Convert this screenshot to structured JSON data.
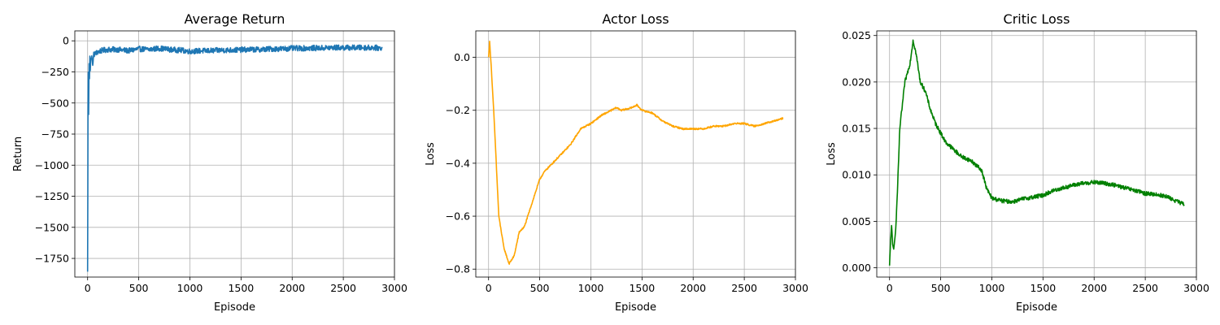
{
  "colors": {
    "return": "#1f77b4",
    "actor": "#ffa500",
    "critic": "#008000",
    "grid": "#b0b0b0",
    "spine": "#000000"
  },
  "chart_data": [
    {
      "type": "line",
      "title": "Average Return",
      "xlabel": "Episode",
      "ylabel": "Return",
      "xlim": [
        -125,
        3000
      ],
      "ylim": [
        -1900,
        80
      ],
      "x_ticks": [
        0,
        500,
        1000,
        1500,
        2000,
        2500,
        3000
      ],
      "y_ticks": [
        -1750,
        -1500,
        -1250,
        -1000,
        -750,
        -500,
        -250,
        0
      ],
      "x_tick_labels": [
        "0",
        "500",
        "1000",
        "1500",
        "2000",
        "2500",
        "3000"
      ],
      "y_tick_labels": [
        "−1750",
        "−1500",
        "−1250",
        "−1000",
        "−750",
        "−500",
        "−250",
        "0"
      ],
      "grid": true,
      "noise": 22,
      "series": [
        {
          "color": "return",
          "x": [
            0,
            2,
            4,
            6,
            8,
            10,
            14,
            18,
            22,
            26,
            30,
            40,
            50,
            60,
            80,
            100,
            130,
            160,
            200,
            300,
            400,
            500,
            600,
            700,
            800,
            900,
            1000,
            1100,
            1200,
            1300,
            1400,
            1500,
            1600,
            1700,
            1800,
            1900,
            2000,
            2100,
            2200,
            2300,
            2400,
            2500,
            2600,
            2700,
            2800,
            2880
          ],
          "y": [
            -1860,
            -1200,
            -560,
            -250,
            -420,
            -590,
            -180,
            -300,
            -120,
            -240,
            -160,
            -120,
            -200,
            -110,
            -100,
            -90,
            -80,
            -75,
            -70,
            -70,
            -80,
            -65,
            -70,
            -60,
            -70,
            -75,
            -85,
            -80,
            -80,
            -75,
            -75,
            -72,
            -70,
            -70,
            -65,
            -65,
            -60,
            -60,
            -58,
            -58,
            -55,
            -55,
            -55,
            -55,
            -55,
            -60
          ]
        }
      ]
    },
    {
      "type": "line",
      "title": "Actor Loss",
      "xlabel": "Episode",
      "ylabel": "Loss",
      "xlim": [
        -125,
        3000
      ],
      "ylim": [
        -0.83,
        0.1
      ],
      "x_ticks": [
        0,
        500,
        1000,
        1500,
        2000,
        2500,
        3000
      ],
      "y_ticks": [
        -0.8,
        -0.6,
        -0.4,
        -0.2,
        0.0
      ],
      "x_tick_labels": [
        "0",
        "500",
        "1000",
        "1500",
        "2000",
        "2500",
        "3000"
      ],
      "y_tick_labels": [
        "−0.8",
        "−0.6",
        "−0.4",
        "−0.2",
        "0.0"
      ],
      "grid": true,
      "noise": 0.003,
      "series": [
        {
          "color": "actor",
          "x": [
            0,
            10,
            25,
            50,
            75,
            100,
            150,
            200,
            250,
            300,
            350,
            400,
            450,
            500,
            550,
            600,
            700,
            800,
            900,
            1000,
            1100,
            1200,
            1250,
            1300,
            1400,
            1450,
            1500,
            1600,
            1700,
            1800,
            1900,
            2000,
            2100,
            2200,
            2300,
            2400,
            2500,
            2600,
            2700,
            2800,
            2880
          ],
          "y": [
            0.0,
            0.06,
            -0.03,
            -0.2,
            -0.4,
            -0.6,
            -0.72,
            -0.78,
            -0.75,
            -0.66,
            -0.64,
            -0.58,
            -0.52,
            -0.46,
            -0.43,
            -0.41,
            -0.37,
            -0.33,
            -0.27,
            -0.25,
            -0.22,
            -0.2,
            -0.19,
            -0.2,
            -0.19,
            -0.18,
            -0.2,
            -0.21,
            -0.24,
            -0.26,
            -0.27,
            -0.27,
            -0.27,
            -0.26,
            -0.26,
            -0.25,
            -0.25,
            -0.26,
            -0.25,
            -0.24,
            -0.23
          ]
        }
      ]
    },
    {
      "type": "line",
      "title": "Critic Loss",
      "xlabel": "Episode",
      "ylabel": "Loss",
      "xlim": [
        -125,
        3000
      ],
      "ylim": [
        -0.001,
        0.0255
      ],
      "x_ticks": [
        0,
        500,
        1000,
        1500,
        2000,
        2500,
        3000
      ],
      "y_ticks": [
        0.0,
        0.005,
        0.01,
        0.015,
        0.02,
        0.025
      ],
      "x_tick_labels": [
        "0",
        "500",
        "1000",
        "1500",
        "2000",
        "2500",
        "3000"
      ],
      "y_tick_labels": [
        "0.000",
        "0.005",
        "0.010",
        "0.015",
        "0.020",
        "0.025"
      ],
      "grid": true,
      "noise": 0.00022,
      "series": [
        {
          "color": "critic",
          "x": [
            0,
            10,
            20,
            30,
            40,
            60,
            80,
            100,
            150,
            200,
            230,
            260,
            300,
            350,
            400,
            450,
            500,
            550,
            600,
            700,
            800,
            900,
            950,
            1000,
            1100,
            1200,
            1300,
            1400,
            1500,
            1600,
            1700,
            1800,
            1900,
            2000,
            2100,
            2200,
            2300,
            2400,
            2500,
            2600,
            2700,
            2800,
            2880
          ],
          "y": [
            0.0002,
            0.003,
            0.0045,
            0.0025,
            0.002,
            0.004,
            0.009,
            0.015,
            0.02,
            0.022,
            0.0245,
            0.023,
            0.02,
            0.019,
            0.017,
            0.0155,
            0.0145,
            0.0135,
            0.013,
            0.012,
            0.0115,
            0.0105,
            0.0085,
            0.0075,
            0.0072,
            0.0071,
            0.0074,
            0.0076,
            0.0078,
            0.0083,
            0.0086,
            0.0089,
            0.0091,
            0.0092,
            0.0091,
            0.0089,
            0.0086,
            0.0083,
            0.008,
            0.0079,
            0.0077,
            0.0072,
            0.0068
          ]
        }
      ]
    }
  ]
}
